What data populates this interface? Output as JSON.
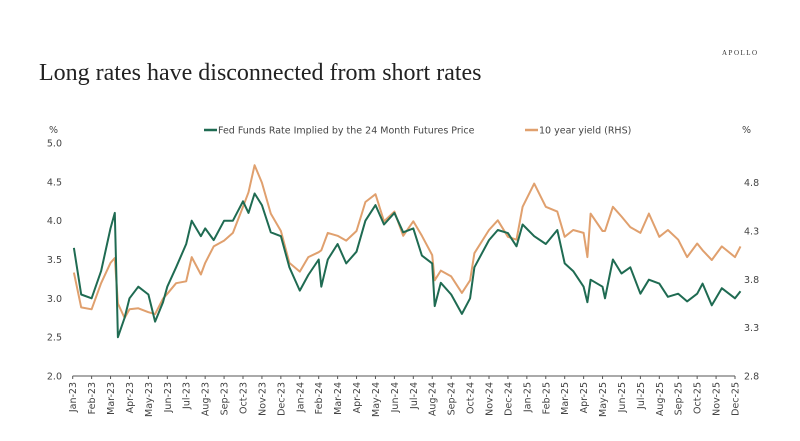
{
  "header": {
    "title": "Long rates have disconnected from short rates",
    "brand": "APOLLO"
  },
  "chart_data": {
    "type": "line",
    "title": "Long rates have disconnected from short rates",
    "y_left_unit": "%",
    "y_right_unit": "%",
    "y_left_lim": [
      2.0,
      5.0
    ],
    "y_left_ticks": [
      "2.0",
      "2.5",
      "3.0",
      "3.5",
      "4.0",
      "4.5",
      "5.0"
    ],
    "y_right_lim": [
      2.8,
      5.21
    ],
    "y_right_ticks": [
      "2.8",
      "3.3",
      "3.8",
      "4.3",
      "4.8"
    ],
    "x_ticks": [
      "Jan-23",
      "Feb-23",
      "Mar-23",
      "Apr-23",
      "May-23",
      "Jun-23",
      "Jul-23",
      "Aug-23",
      "Sep-23",
      "Oct-23",
      "Nov-23",
      "Dec-23",
      "Jan-24",
      "Feb-24",
      "Mar-24",
      "Apr-24",
      "May-24",
      "Jun-24",
      "Jul-24",
      "Aug-24",
      "Sep-24",
      "Oct-24",
      "Nov-24",
      "Dec-24",
      "Jan-25",
      "Feb-25",
      "Mar-25",
      "Apr-25",
      "May-25",
      "Jun-25",
      "Jul-25",
      "Aug-25",
      "Sep-25",
      "Oct-25",
      "Nov-25",
      "Dec-25"
    ],
    "grid": false,
    "legend": "top-center",
    "x": [
      "2023-01-03",
      "2023-01-15",
      "2023-02-01",
      "2023-02-15",
      "2023-03-01",
      "2023-03-08",
      "2023-03-13",
      "2023-03-24",
      "2023-04-01",
      "2023-04-15",
      "2023-05-01",
      "2023-05-12",
      "2023-05-25",
      "2023-06-01",
      "2023-06-15",
      "2023-07-01",
      "2023-07-10",
      "2023-07-25",
      "2023-08-01",
      "2023-08-15",
      "2023-09-01",
      "2023-09-15",
      "2023-10-01",
      "2023-10-10",
      "2023-10-20",
      "2023-11-01",
      "2023-11-15",
      "2023-12-01",
      "2023-12-15",
      "2024-01-01",
      "2024-01-15",
      "2024-02-01",
      "2024-02-05",
      "2024-02-15",
      "2024-03-01",
      "2024-03-15",
      "2024-04-01",
      "2024-04-15",
      "2024-05-01",
      "2024-05-15",
      "2024-06-01",
      "2024-06-15",
      "2024-07-01",
      "2024-07-15",
      "2024-08-01",
      "2024-08-05",
      "2024-08-15",
      "2024-09-01",
      "2024-09-18",
      "2024-10-01",
      "2024-10-08",
      "2024-11-01",
      "2024-11-15",
      "2024-12-01",
      "2024-12-15",
      "2024-12-25",
      "2025-01-13",
      "2025-02-01",
      "2025-02-18",
      "2025-03-01",
      "2025-03-15",
      "2025-04-01",
      "2025-04-07",
      "2025-04-12",
      "2025-05-01",
      "2025-05-05",
      "2025-05-18",
      "2025-06-01",
      "2025-06-15",
      "2025-07-01",
      "2025-07-15",
      "2025-08-01",
      "2025-08-15",
      "2025-09-01",
      "2025-09-15",
      "2025-10-01",
      "2025-10-10",
      "2025-10-25",
      "2025-11-10",
      "2025-12-01",
      "2025-12-10"
    ],
    "series": [
      {
        "name": "Fed Funds Rate Implied by the 24 Month Futures Price",
        "axis": "left",
        "color": "#1f6b52",
        "values": [
          3.65,
          3.05,
          3.0,
          3.35,
          3.9,
          4.1,
          2.5,
          2.75,
          3.0,
          3.15,
          3.05,
          2.7,
          2.95,
          3.15,
          3.4,
          3.7,
          4.0,
          3.8,
          3.9,
          3.75,
          4.0,
          4.0,
          4.25,
          4.1,
          4.35,
          4.2,
          3.85,
          3.8,
          3.4,
          3.1,
          3.3,
          3.5,
          3.15,
          3.5,
          3.7,
          3.45,
          3.6,
          4.0,
          4.2,
          3.95,
          4.1,
          3.85,
          3.9,
          3.55,
          3.45,
          2.9,
          3.2,
          3.05,
          2.8,
          3.0,
          3.4,
          3.75,
          3.88,
          3.84,
          3.67,
          3.95,
          3.8,
          3.7,
          3.88,
          3.45,
          3.35,
          3.15,
          2.95,
          3.24,
          3.15,
          3.0,
          3.5,
          3.32,
          3.4,
          3.06,
          3.24,
          3.19,
          3.02,
          3.06,
          2.96,
          3.06,
          3.19,
          2.91,
          3.13,
          3.0,
          3.09
        ]
      },
      {
        "name": "10 year yield (RHS)",
        "axis": "right",
        "color": "#e0a06e",
        "values": [
          3.87,
          3.51,
          3.49,
          3.76,
          3.97,
          4.02,
          3.55,
          3.4,
          3.49,
          3.5,
          3.46,
          3.44,
          3.6,
          3.65,
          3.76,
          3.78,
          4.03,
          3.85,
          3.97,
          4.14,
          4.2,
          4.28,
          4.55,
          4.7,
          4.98,
          4.8,
          4.48,
          4.3,
          3.97,
          3.88,
          4.03,
          4.08,
          4.1,
          4.28,
          4.25,
          4.2,
          4.3,
          4.6,
          4.68,
          4.4,
          4.5,
          4.25,
          4.4,
          4.25,
          4.05,
          3.79,
          3.89,
          3.83,
          3.66,
          3.79,
          4.07,
          4.31,
          4.41,
          4.24,
          4.21,
          4.55,
          4.79,
          4.55,
          4.5,
          4.24,
          4.31,
          4.28,
          4.03,
          4.48,
          4.3,
          4.3,
          4.55,
          4.45,
          4.34,
          4.28,
          4.48,
          4.24,
          4.31,
          4.21,
          4.03,
          4.17,
          4.1,
          4.0,
          4.14,
          4.03,
          4.14
        ]
      }
    ]
  }
}
